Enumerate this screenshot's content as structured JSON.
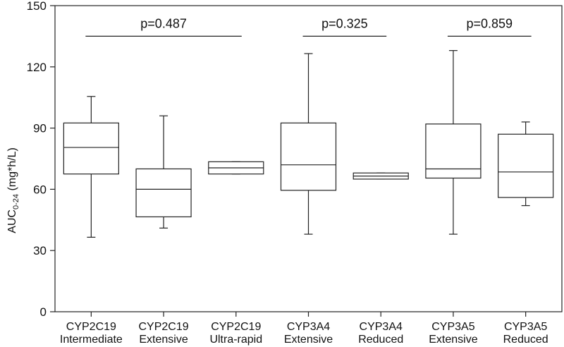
{
  "chart_data": {
    "type": "box",
    "ylabel_main": "AUC",
    "ylabel_sub": "0-24",
    "ylabel_unit": " (mg*h/L)",
    "ylim": [
      0,
      150
    ],
    "yticks": [
      0,
      30,
      60,
      90,
      120,
      150
    ],
    "groups": [
      {
        "label_line1": "CYP2C19",
        "label_line2": "Intermediate",
        "min": 36.5,
        "q1": 67.5,
        "median": 80.5,
        "q3": 92.5,
        "max": 105.5
      },
      {
        "label_line1": "CYP2C19",
        "label_line2": "Extensive",
        "min": 41.0,
        "q1": 46.5,
        "median": 60.0,
        "q3": 70.0,
        "max": 96.0
      },
      {
        "label_line1": "CYP2C19",
        "label_line2": "Ultra-rapid",
        "min": 67.5,
        "q1": 67.5,
        "median": 70.5,
        "q3": 73.5,
        "max": 73.5
      },
      {
        "label_line1": "CYP3A4",
        "label_line2": "Extensive",
        "min": 38.0,
        "q1": 59.5,
        "median": 72.0,
        "q3": 92.5,
        "max": 126.5
      },
      {
        "label_line1": "CYP3A4",
        "label_line2": "Reduced",
        "min": 65.0,
        "q1": 65.0,
        "median": 66.5,
        "q3": 68.0,
        "max": 68.0
      },
      {
        "label_line1": "CYP3A5",
        "label_line2": "Extensive",
        "min": 38.0,
        "q1": 65.5,
        "median": 70.0,
        "q3": 92.0,
        "max": 128.0
      },
      {
        "label_line1": "CYP3A5",
        "label_line2": "Reduced",
        "min": 52.0,
        "q1": 56.0,
        "median": 68.5,
        "q3": 87.0,
        "max": 93.0
      }
    ],
    "comparisons": [
      {
        "label": "p=0.487",
        "from": 0,
        "to": 2,
        "y": 135
      },
      {
        "label": "p=0.325",
        "from": 3,
        "to": 4,
        "y": 135
      },
      {
        "label": "p=0.859",
        "from": 5,
        "to": 6,
        "y": 135
      }
    ]
  }
}
